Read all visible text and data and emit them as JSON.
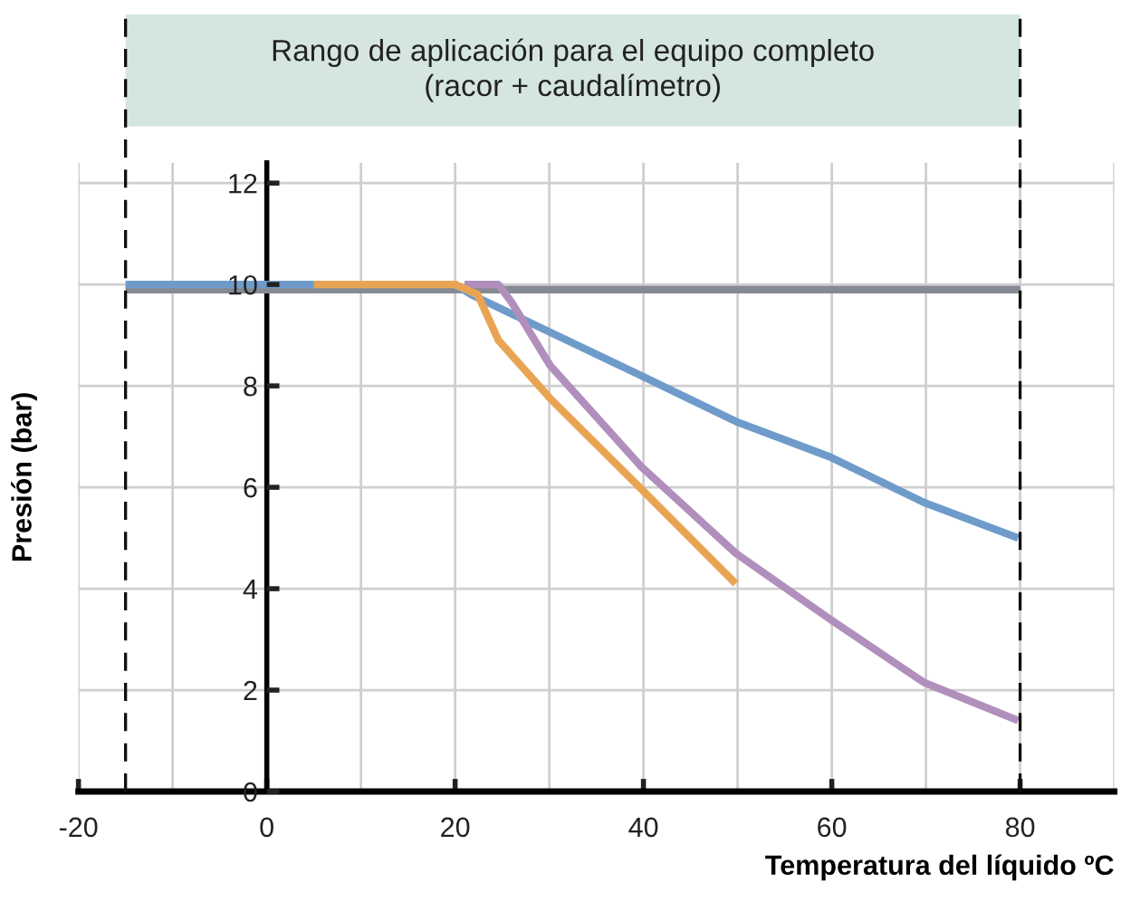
{
  "chart_data": {
    "type": "line",
    "xlabel": "Temperatura del líquido ºC",
    "ylabel": "Presión (bar)",
    "xlim": [
      -20,
      90
    ],
    "ylim": [
      0,
      12.4
    ],
    "xticks": [
      -20,
      {
        "value": -10,
        "label": null
      },
      0,
      {
        "value": 10,
        "label": null
      },
      20,
      {
        "value": 30,
        "label": null
      },
      40,
      {
        "value": 50,
        "label": null
      },
      60,
      {
        "value": 70,
        "label": null
      },
      80,
      {
        "value": 90,
        "label": null
      }
    ],
    "yticks": [
      0,
      2,
      4,
      6,
      8,
      10,
      12
    ],
    "grid": true,
    "line_style": "solid",
    "marker": "none",
    "series": [
      {
        "color": "#868a93",
        "x": [
          -15,
          80
        ],
        "values": [
          9.9,
          9.9
        ]
      },
      {
        "color": "#6f9bcb",
        "x": [
          -15,
          20,
          21.7,
          39.8,
          49.8,
          59.8,
          69.8,
          79.8
        ],
        "values": [
          10,
          10,
          9.8,
          8.2,
          7.3,
          6.6,
          5.7,
          5.0
        ]
      },
      {
        "color": "#b18fbc",
        "x": [
          21,
          24.6,
          26,
          30.1,
          39.8,
          49.8,
          59.8,
          69.8,
          79.8
        ],
        "values": [
          10,
          10,
          9.65,
          8.4,
          6.4,
          4.7,
          3.4,
          2.15,
          1.4
        ]
      },
      {
        "color": "#e9a453",
        "x": [
          5,
          20,
          22.4,
          24.6,
          30.1,
          39.8,
          49.8
        ],
        "values": [
          10,
          10,
          9.8,
          8.9,
          7.75,
          5.96,
          4.1
        ]
      }
    ],
    "title": "Rango de aplicación para el equipo completo\n(racor + caudalímetro)",
    "ref_lines": [
      {
        "axis": "x",
        "value": -15,
        "line_style": "dashed",
        "color": "#111111"
      },
      {
        "axis": "x",
        "value": 80,
        "line_style": "dashed",
        "color": "#111111"
      }
    ]
  }
}
